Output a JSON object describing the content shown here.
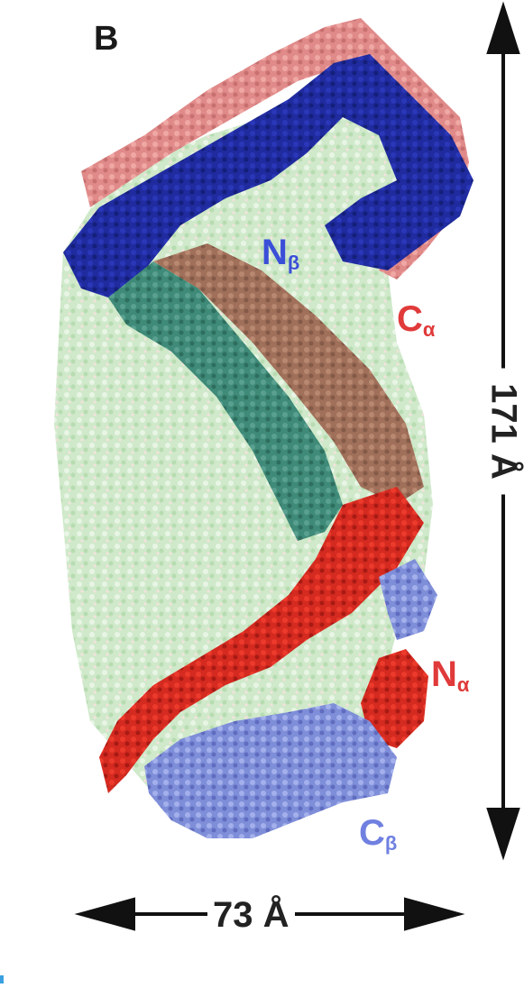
{
  "figure": {
    "panel_letter": "B",
    "labels": {
      "n_beta": "N",
      "n_beta_sub": "β",
      "c_alpha": "C",
      "c_alpha_sub": "α",
      "n_alpha": "N",
      "n_alpha_sub": "α",
      "c_beta": "C",
      "c_beta_sub": "β"
    },
    "dimensions": {
      "height": "171 Å",
      "width": "73 Å"
    },
    "colors": {
      "background_chain": "#c9e6c4",
      "beta_chain_top": "#1f2b9e",
      "alpha_chain_salmon": "#e08a8a",
      "alpha_chain_red": "#d42a20",
      "beta_chain_periwinkle": "#7f8ed8",
      "teal_segment": "#3f8a78",
      "brown_segment": "#a0705a"
    }
  }
}
